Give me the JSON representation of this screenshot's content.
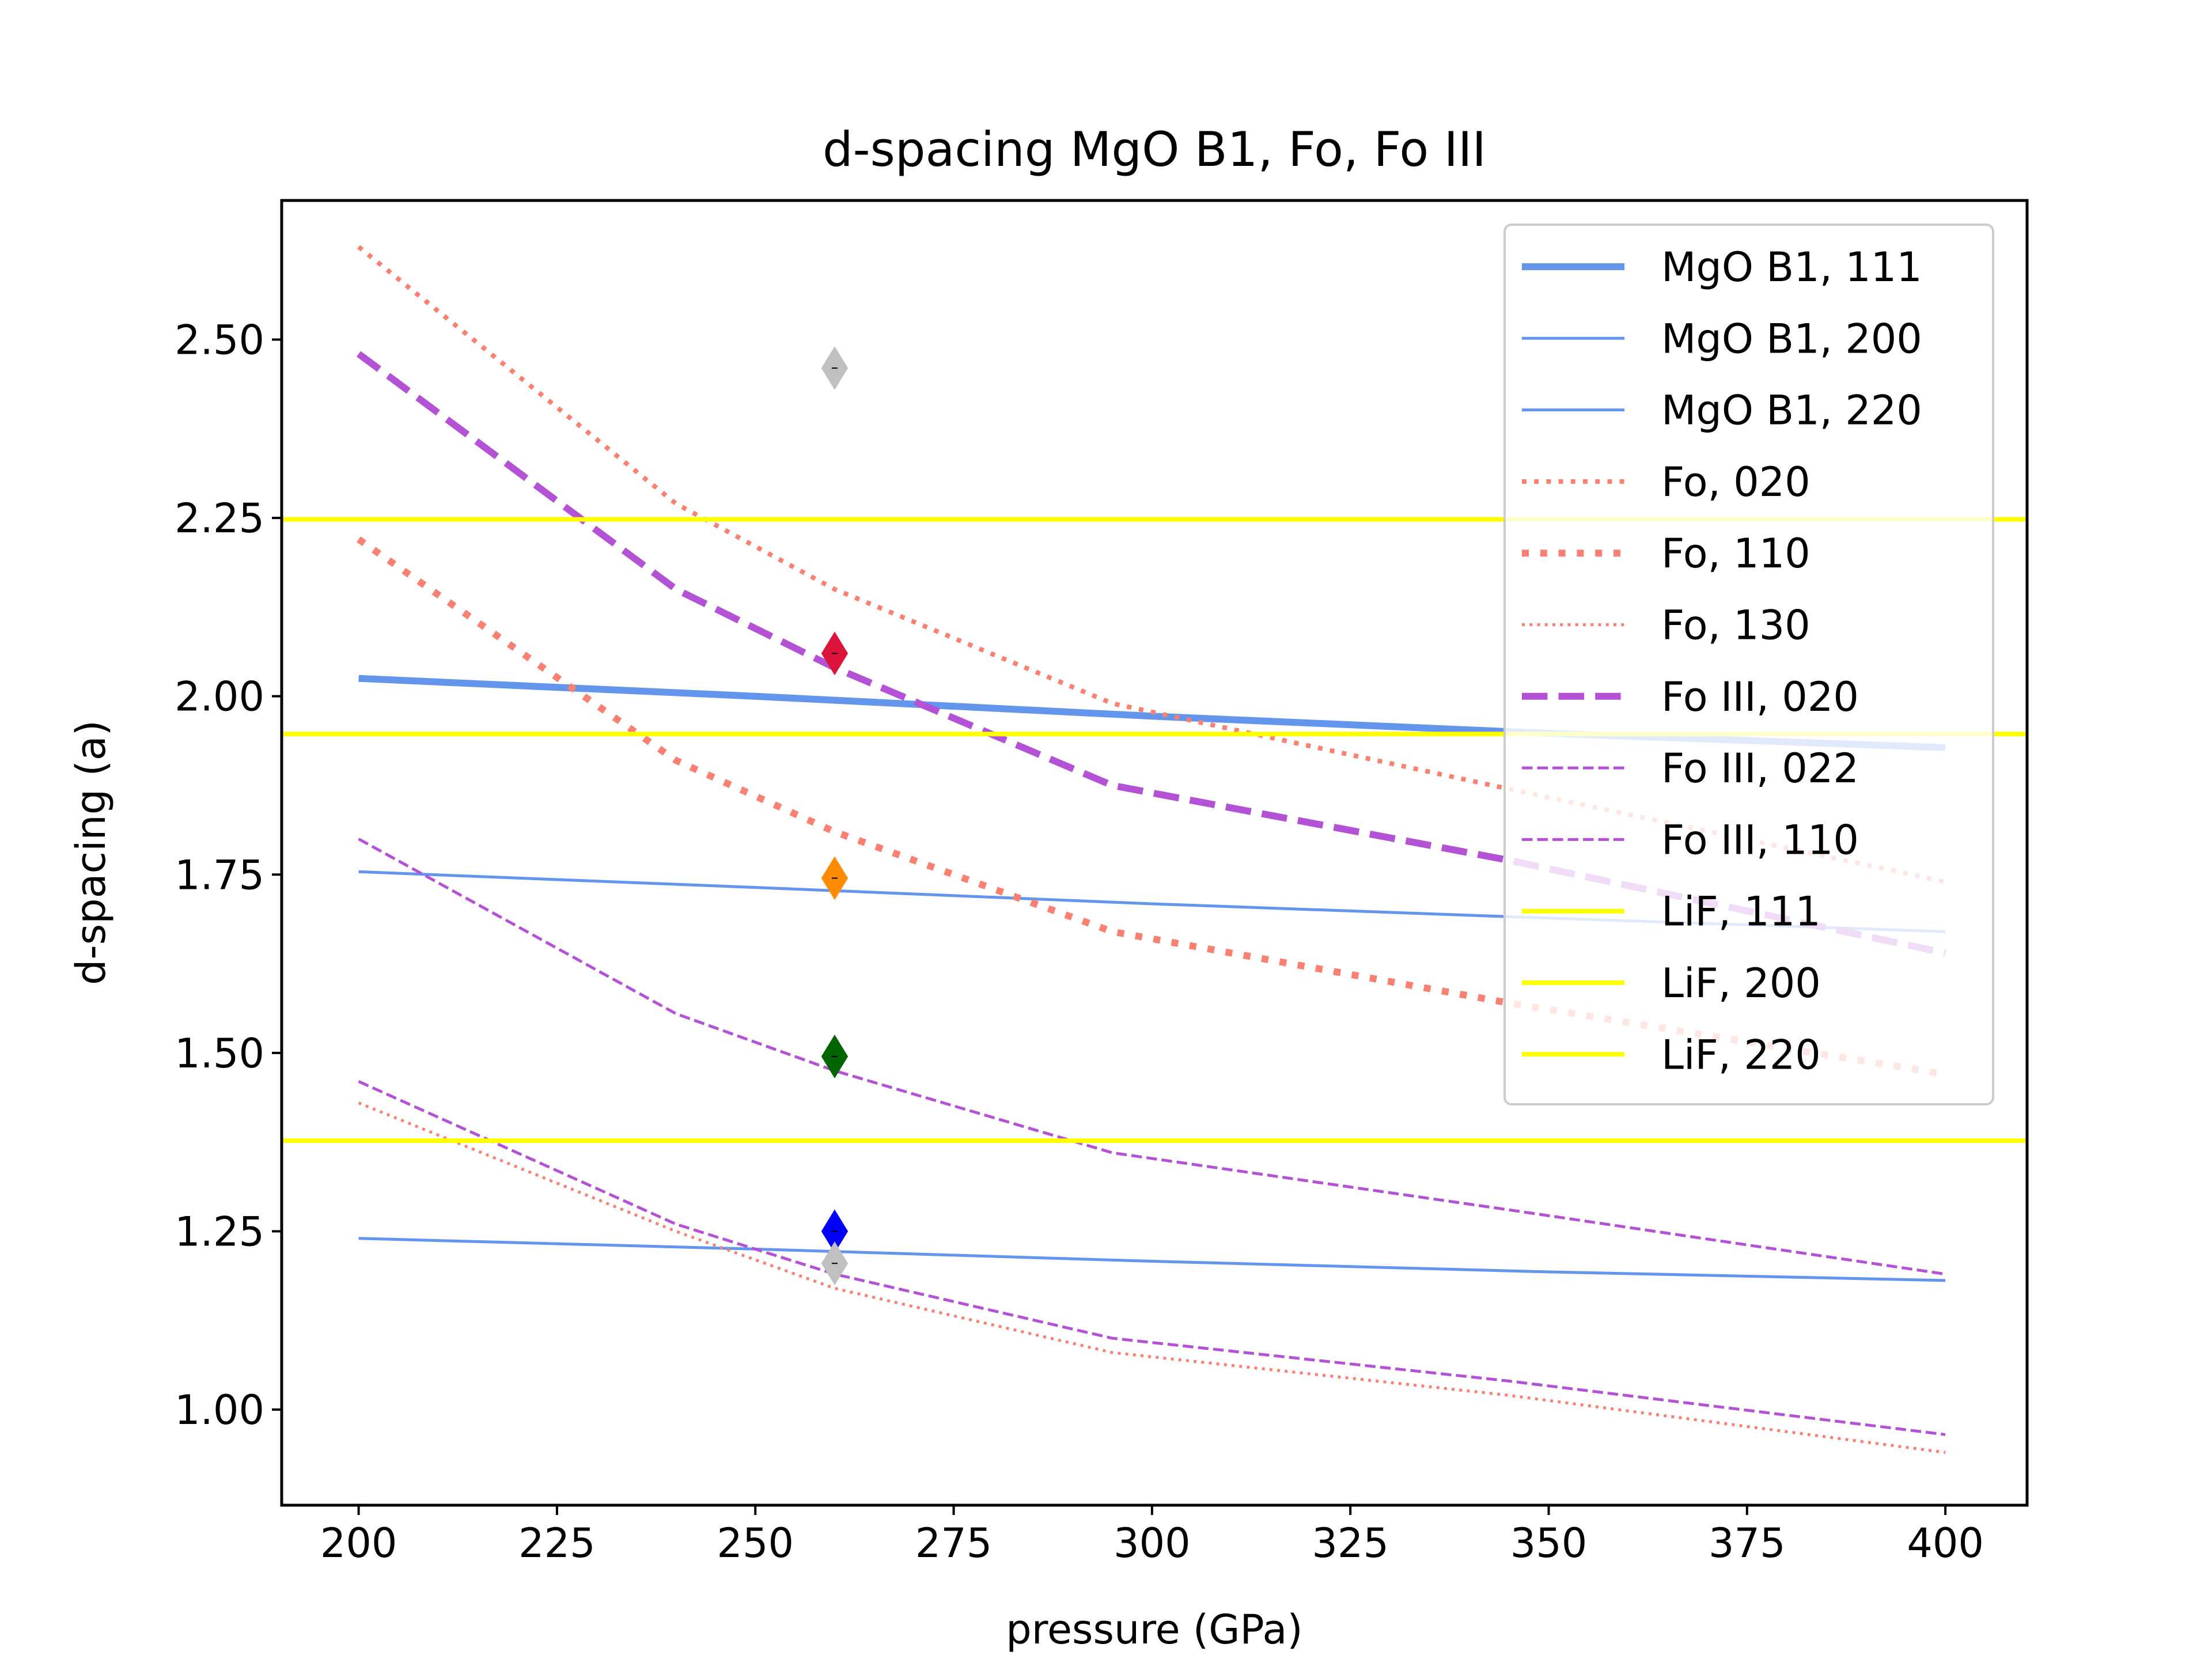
{
  "chart_data": {
    "type": "line",
    "title": "d-spacing MgO B1, Fo, Fo III",
    "xlabel": "pressure (GPa)",
    "ylabel": "d-spacing (a)",
    "xlim": [
      190.3,
      410.3
    ],
    "ylim": [
      0.866,
      2.695
    ],
    "xticks": [
      200,
      225,
      250,
      275,
      300,
      325,
      350,
      375,
      400
    ],
    "xtick_labels": [
      "200",
      "225",
      "250",
      "275",
      "300",
      "325",
      "350",
      "375",
      "400"
    ],
    "yticks": [
      1.0,
      1.25,
      1.5,
      1.75,
      2.0,
      2.25,
      2.5
    ],
    "ytick_labels": [
      "1.00",
      "1.25",
      "1.50",
      "1.75",
      "2.00",
      "2.25",
      "2.50"
    ],
    "grid": false,
    "legend_position": "upper right",
    "series": [
      {
        "name": "MgO B1, 111",
        "color": "#6495ED",
        "style": "solid",
        "width": "thick",
        "x": [
          200,
          250,
          300,
          350,
          400
        ],
        "y": [
          2.025,
          2.0,
          1.972,
          1.948,
          1.928
        ]
      },
      {
        "name": "MgO B1, 200",
        "color": "#6495ED",
        "style": "solid",
        "width": "thin",
        "x": [
          200,
          250,
          300,
          350,
          400
        ],
        "y": [
          1.754,
          1.732,
          1.709,
          1.689,
          1.67
        ]
      },
      {
        "name": "MgO B1, 220",
        "color": "#6495ED",
        "style": "solid",
        "width": "thin",
        "x": [
          200,
          250,
          300,
          350,
          400
        ],
        "y": [
          1.24,
          1.225,
          1.208,
          1.193,
          1.181
        ]
      },
      {
        "name": "Fo, 020",
        "color": "#FA8072",
        "style": "dotted",
        "width": "medium",
        "x": [
          200,
          240,
          260,
          295,
          345,
          400
        ],
        "y": [
          2.63,
          2.27,
          2.15,
          1.99,
          1.87,
          1.74
        ]
      },
      {
        "name": "Fo, 110",
        "color": "#FA8072",
        "style": "dotted",
        "width": "thick",
        "x": [
          200,
          240,
          260,
          295,
          345,
          400
        ],
        "y": [
          2.22,
          1.91,
          1.81,
          1.67,
          1.57,
          1.47
        ]
      },
      {
        "name": "Fo, 130",
        "color": "#FA8072",
        "style": "dotted",
        "width": "thin",
        "x": [
          200,
          240,
          260,
          295,
          345,
          400
        ],
        "y": [
          1.43,
          1.25,
          1.17,
          1.08,
          1.02,
          0.94
        ]
      },
      {
        "name": "Fo III, 020",
        "color": "#B452D6",
        "style": "dashed",
        "width": "thick",
        "x": [
          200,
          240,
          260,
          295,
          345,
          400
        ],
        "y": [
          2.48,
          2.15,
          2.04,
          1.875,
          1.77,
          1.64
        ]
      },
      {
        "name": "Fo III, 022",
        "color": "#B452D6",
        "style": "dashed",
        "width": "thin",
        "x": [
          200,
          240,
          260,
          295,
          345,
          400
        ],
        "y": [
          1.8,
          1.555,
          1.475,
          1.36,
          1.28,
          1.19
        ]
      },
      {
        "name": "Fo III, 110",
        "color": "#B452D6",
        "style": "dashed",
        "width": "thin",
        "x": [
          200,
          240,
          260,
          295,
          345,
          400
        ],
        "y": [
          1.46,
          1.26,
          1.19,
          1.1,
          1.04,
          0.965
        ]
      },
      {
        "name": "LiF, 111",
        "color": "#FFFF00",
        "style": "solid",
        "width": "medium",
        "x": [
          190.3,
          410.3
        ],
        "y": [
          2.248,
          2.248
        ]
      },
      {
        "name": "LiF, 200",
        "color": "#FFFF00",
        "style": "solid",
        "width": "medium",
        "x": [
          190.3,
          410.3
        ],
        "y": [
          1.947,
          1.947
        ]
      },
      {
        "name": "LiF, 220",
        "color": "#FFFF00",
        "style": "solid",
        "width": "medium",
        "x": [
          190.3,
          410.3
        ],
        "y": [
          1.377,
          1.377
        ]
      }
    ],
    "markers": [
      {
        "x": 260,
        "y": 2.46,
        "color": "#C0C0C0"
      },
      {
        "x": 260,
        "y": 2.06,
        "color": "#DC143C"
      },
      {
        "x": 260,
        "y": 1.745,
        "color": "#FF8C00"
      },
      {
        "x": 260,
        "y": 1.495,
        "color": "#006400"
      },
      {
        "x": 260,
        "y": 1.25,
        "color": "#0000FF"
      },
      {
        "x": 260,
        "y": 1.205,
        "color": "#C0C0C0"
      }
    ]
  }
}
